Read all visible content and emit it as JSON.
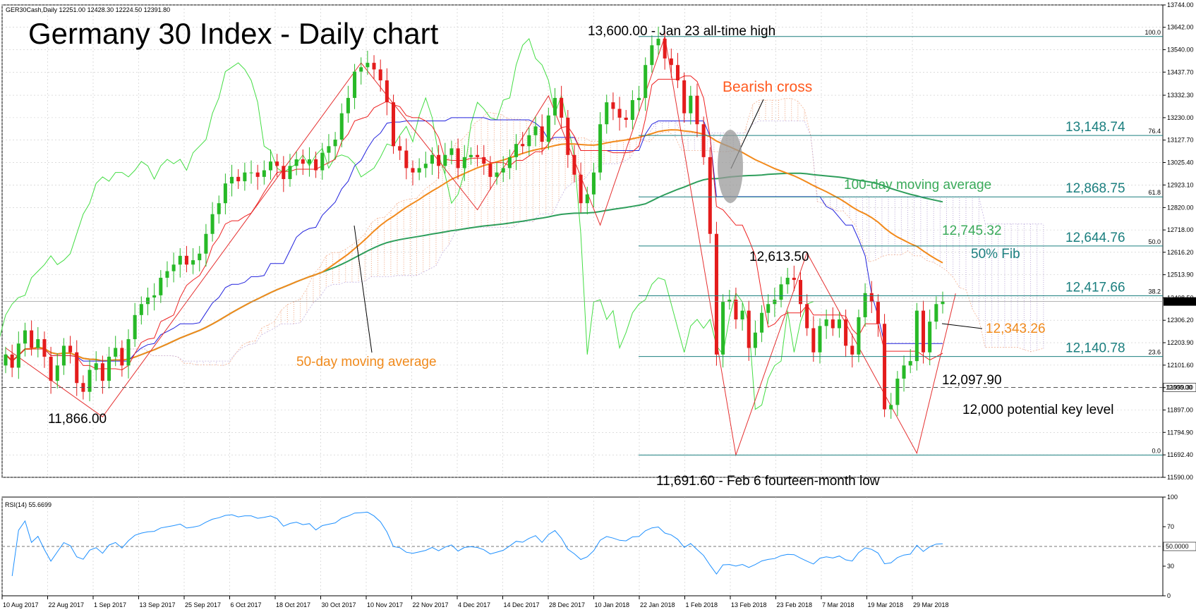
{
  "chart_data": {
    "type": "candlestick",
    "title": "Germany 30 Index - Daily chart",
    "header": "GER30Cash,Daily  12251.00 12428.30 12224.50 12391.80",
    "current_price_label": "12391.80",
    "key_level_label": "12000.00",
    "price_axis": {
      "range": [
        11590,
        13744
      ],
      "ticks": [
        "13744.00",
        "13642.00",
        "13540.00",
        "13437.70",
        "13332.30",
        "13230.00",
        "13127.70",
        "13025.40",
        "12923.10",
        "12820.00",
        "12718.00",
        "12616.20",
        "12513.90",
        "12408.50",
        "12306.20",
        "12203.90",
        "12101.60",
        "11999.30",
        "11897.00",
        "11794.90",
        "11692.40",
        "11590.00"
      ]
    },
    "x_axis": {
      "ticks": [
        "10 Aug 2017",
        "22 Aug 2017",
        "1 Sep 2017",
        "13 Sep 2017",
        "25 Sep 2017",
        "6 Oct 2017",
        "18 Oct 2017",
        "30 Oct 2017",
        "10 Nov 2017",
        "22 Nov 2017",
        "4 Dec 2017",
        "14 Dec 2017",
        "28 Dec 2017",
        "10 Jan 2018",
        "22 Jan 2018",
        "1 Feb 2018",
        "13 Feb 2018",
        "23 Feb 2018",
        "7 Mar 2018",
        "19 Mar 2018",
        "29 Mar 2018"
      ]
    },
    "fibonacci": [
      {
        "level": "100.0",
        "price": 13600.0,
        "label": ""
      },
      {
        "level": "76.4",
        "price": 13148.74,
        "label": "13,148.74"
      },
      {
        "level": "61.8",
        "price": 12868.75,
        "label": "12,868.75"
      },
      {
        "level": "50.0",
        "price": 12644.76,
        "label": "12,644.76"
      },
      {
        "level": "38.2",
        "price": 12417.66,
        "label": "12,417.66"
      },
      {
        "level": "23.6",
        "price": 12140.78,
        "label": "12,140.78"
      },
      {
        "level": "0.0",
        "price": 11691.6,
        "label": ""
      }
    ],
    "annotations": {
      "ath": "13,600.00 - Jan 23 all-time high",
      "bearish_cross": "Bearish cross",
      "ma100": "100-day moving average",
      "ma100_value": "12,745.32",
      "fib50": "50% Fib",
      "peak": "12,613.50",
      "ma50_value": "12,343.26",
      "ma50": "50-day moving average",
      "kijun_value": "12,097.90",
      "key_level": "12,000 potential key level",
      "low_2017": "11,866.00",
      "feb_low": "11,691.60 - Feb 6 fourteen-month low"
    },
    "rsi": {
      "label": "RSI(14) 55.6699",
      "value_label": "50.0000",
      "ticks": [
        "100",
        "70",
        "50",
        "30",
        "0"
      ],
      "range": [
        0,
        100
      ]
    },
    "series_approx": {
      "close": [
        12150,
        12090,
        12200,
        12260,
        12180,
        12220,
        12140,
        12030,
        12100,
        12190,
        12160,
        12020,
        11980,
        12080,
        12110,
        12030,
        12140,
        12180,
        12100,
        12220,
        12330,
        12380,
        12410,
        12420,
        12500,
        12530,
        12560,
        12600,
        12560,
        12580,
        12610,
        12700,
        12790,
        12840,
        12930,
        12960,
        12940,
        12980,
        12980,
        12960,
        12990,
        13030,
        13010,
        12950,
        13010,
        13040,
        13020,
        13040,
        12990,
        13070,
        13100,
        13130,
        13250,
        13320,
        13440,
        13460,
        13480,
        13450,
        13400,
        13300,
        13100,
        13080,
        13000,
        12980,
        13000,
        13020,
        13060,
        13010,
        13060,
        13090,
        13000,
        13050,
        13060,
        13050,
        13020,
        12960,
        12980,
        13000,
        13050,
        13110,
        13100,
        13150,
        13190,
        13120,
        13240,
        13320,
        13230,
        13060,
        12970,
        12840,
        12880,
        12980,
        13200,
        13300,
        13270,
        13230,
        13220,
        13310,
        13320,
        13470,
        13560,
        13590,
        13500,
        13470,
        13400,
        13250,
        13330,
        13200,
        13050,
        12700,
        12150,
        12390,
        12400,
        12310,
        12350,
        12180,
        12250,
        12340,
        12380,
        12400,
        12470,
        12500,
        12490,
        12380,
        12270,
        12160,
        12280,
        12310,
        12270,
        12310,
        12190,
        12150,
        12320,
        12430,
        12390,
        12290,
        11900,
        11920,
        12040,
        12100,
        12120,
        12350,
        12160,
        12300,
        12380,
        12391.8
      ]
    }
  }
}
